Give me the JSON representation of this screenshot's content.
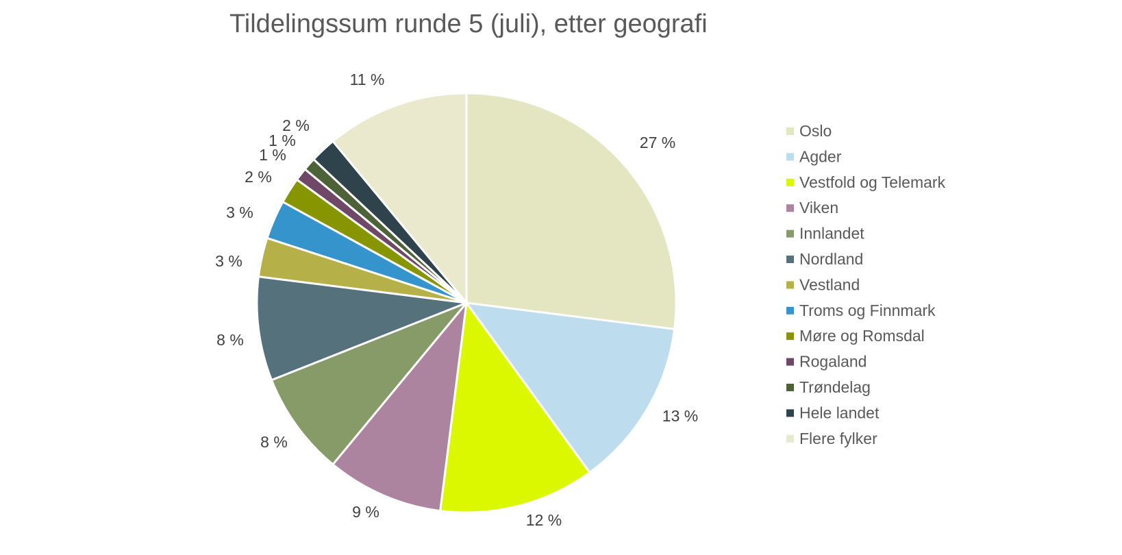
{
  "chart_data": {
    "type": "pie",
    "title": "Tildelingssum runde 5 (juli), etter geografi",
    "series": [
      {
        "values": [
          27,
          13,
          12,
          9,
          8,
          8,
          3,
          3,
          2,
          1,
          1,
          2,
          11
        ],
        "labels": [
          "27 %",
          "13 %",
          "12 %",
          "9 %",
          "8 %",
          "8 %",
          "3 %",
          "3 %",
          "2 %",
          "1 %",
          "1 %",
          "2 %",
          "11 %"
        ]
      }
    ],
    "categories": [
      "Oslo",
      "Agder",
      "Vestfold og Telemark",
      "Viken",
      "Innlandet",
      "Nordland",
      "Vestland",
      "Troms og Finnmark",
      "Møre og Romsdal",
      "Rogaland",
      "Trøndelag",
      "Hele landet",
      "Flere fylker"
    ],
    "colors": [
      "#e4e5c1",
      "#bddcee",
      "#dcf800",
      "#ad84a0",
      "#879b68",
      "#54717c",
      "#b5b148",
      "#3594cc",
      "#879600",
      "#6e4866",
      "#4e6238",
      "#2e434c",
      "#eae9cd"
    ],
    "legend_position": "right"
  }
}
